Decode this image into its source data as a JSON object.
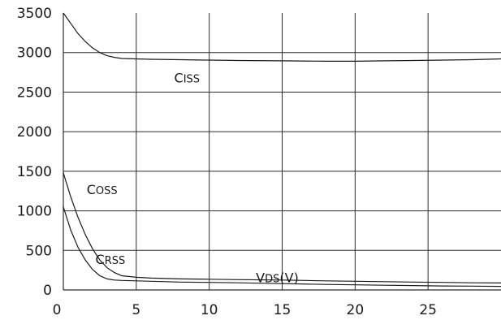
{
  "chart_data": {
    "type": "line",
    "title": "",
    "xlabel": "",
    "ylabel": "",
    "xlim": [
      0,
      30
    ],
    "ylim": [
      0,
      3500
    ],
    "x_ticks": [
      0,
      5,
      10,
      15,
      20,
      25
    ],
    "y_ticks": [
      0,
      500,
      1000,
      1500,
      2000,
      2500,
      3000,
      3500
    ],
    "x_tick_labels": [
      "0",
      "5",
      "10",
      "15",
      "20",
      "25"
    ],
    "y_tick_labels": [
      "0",
      "500",
      "1000",
      "1500",
      "2000",
      "2500",
      "3000",
      "3500"
    ],
    "grid": true,
    "legend": "none",
    "series": [
      {
        "x": [
          0,
          0.5,
          1,
          1.5,
          2,
          2.5,
          3,
          3.5,
          4,
          5,
          6,
          8,
          10,
          12,
          15,
          18,
          20,
          22,
          24,
          26,
          28,
          30
        ],
        "y": [
          3500,
          3370,
          3240,
          3140,
          3060,
          3000,
          2960,
          2940,
          2925,
          2920,
          2915,
          2910,
          2905,
          2900,
          2895,
          2890,
          2890,
          2895,
          2900,
          2905,
          2910,
          2920
        ]
      },
      {
        "x": [
          0,
          0.5,
          1,
          1.5,
          2,
          2.5,
          3,
          3.5,
          4,
          5,
          6,
          8,
          10,
          12,
          15,
          18,
          20,
          22,
          24,
          26,
          28,
          30
        ],
        "y": [
          1480,
          1180,
          920,
          700,
          520,
          380,
          280,
          220,
          180,
          160,
          150,
          140,
          135,
          130,
          125,
          115,
          110,
          105,
          100,
          95,
          90,
          88
        ]
      },
      {
        "x": [
          0,
          0.5,
          1,
          1.5,
          2,
          2.5,
          3,
          3.5,
          4,
          5,
          6,
          8,
          10,
          12,
          15,
          18,
          20,
          22,
          24,
          26,
          28,
          30
        ],
        "y": [
          1050,
          760,
          540,
          380,
          260,
          180,
          140,
          125,
          120,
          115,
          110,
          100,
          95,
          90,
          80,
          70,
          65,
          60,
          55,
          50,
          48,
          45
        ]
      }
    ],
    "annotations": [
      {
        "main": "C",
        "sub": "ISS",
        "x": 7.6,
        "y": 2620
      },
      {
        "main": "C",
        "sub": "OSS",
        "x": 1.6,
        "y": 1210
      },
      {
        "main": "C",
        "sub": "RSS",
        "x": 2.2,
        "y": 330
      },
      {
        "main": "V",
        "sub": "DS",
        "suffix": "(V)",
        "x": 13.2,
        "y": 100
      }
    ]
  }
}
